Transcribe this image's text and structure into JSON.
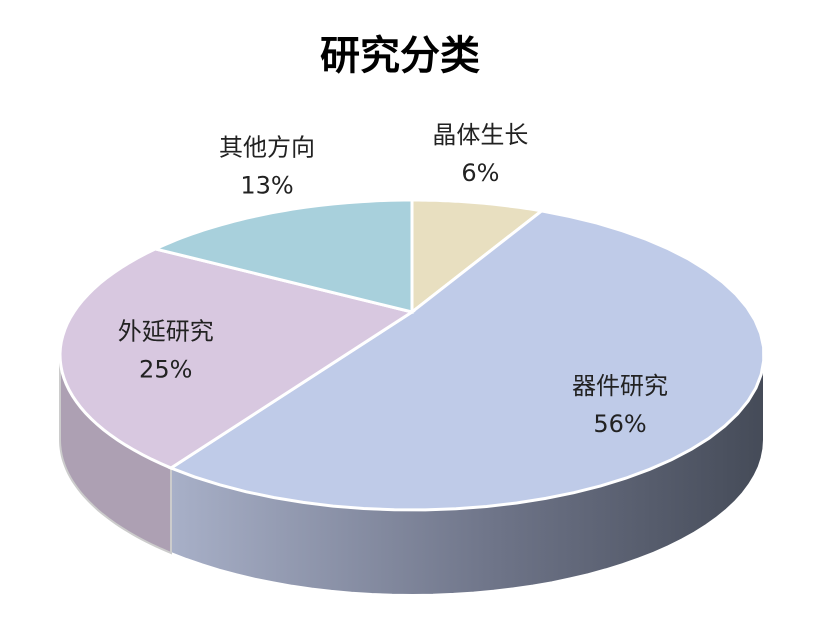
{
  "chart_data": {
    "type": "pie",
    "title": "研究分类",
    "categories": [
      "晶体生长",
      "器件研究",
      "外延研究",
      "其他方向"
    ],
    "values": [
      6,
      56,
      25,
      13
    ],
    "value_labels": [
      "6%",
      "56%",
      "25%",
      "13%"
    ],
    "colors": [
      "#e8dfc0",
      "#bfcbe8",
      "#d8c8e0",
      "#a8d0dc"
    ]
  }
}
